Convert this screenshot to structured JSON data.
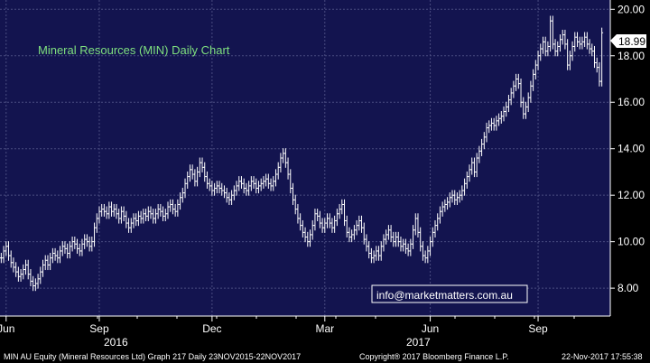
{
  "chart_data": {
    "type": "ohlc",
    "title": "Mineral Resources (MIN) Daily Chart",
    "ylim": [
      6.8,
      20.4
    ],
    "yticks": [
      8,
      10,
      12,
      14,
      16,
      18,
      20
    ],
    "ytick_labels": [
      "8.00",
      "10.00",
      "12.00",
      "14.00",
      "16.00",
      "18.00",
      "20.00"
    ],
    "x_month_labels": [
      "Jun",
      "Sep",
      "Dec",
      "Mar",
      "Jun",
      "Sep"
    ],
    "year_labels": [
      "2016",
      "2017"
    ],
    "grid": true,
    "last_price": 18.99,
    "last_price_label": "18.99",
    "watermark": "info@marketmatters.com.au",
    "series": [
      {
        "values": [
          9.3,
          9.6,
          9.8,
          9.4,
          9.1,
          8.9,
          8.7,
          8.5,
          8.6,
          8.8,
          9.0,
          8.6,
          8.3,
          8.1,
          8.2,
          8.4,
          8.7,
          9.0,
          9.2,
          9.0,
          9.3,
          9.5,
          9.4,
          9.3,
          9.6,
          9.8,
          9.7,
          9.5,
          9.8,
          10.0,
          9.9,
          9.7,
          9.6,
          9.9,
          10.1,
          10.0,
          9.8,
          10.0,
          10.6,
          11.0,
          11.3,
          11.4,
          11.3,
          11.2,
          11.5,
          11.3,
          11.4,
          11.2,
          11.0,
          11.3,
          11.1,
          10.8,
          10.6,
          10.8,
          11.0,
          10.9,
          11.1,
          11.0,
          11.2,
          11.1,
          11.3,
          11.2,
          11.0,
          11.2,
          11.4,
          11.3,
          11.1,
          11.2,
          11.5,
          11.6,
          11.4,
          11.3,
          11.6,
          11.9,
          12.1,
          12.5,
          12.8,
          13.1,
          12.9,
          12.6,
          13.0,
          13.4,
          13.2,
          12.8,
          12.5,
          12.4,
          12.2,
          12.3,
          12.4,
          12.3,
          12.2,
          12.1,
          11.9,
          11.8,
          12.0,
          12.2,
          12.4,
          12.6,
          12.5,
          12.3,
          12.2,
          12.4,
          12.6,
          12.5,
          12.3,
          12.4,
          12.5,
          12.6,
          12.7,
          12.5,
          12.4,
          12.6,
          12.9,
          13.2,
          13.6,
          13.8,
          13.4,
          12.9,
          12.3,
          11.8,
          11.4,
          11.0,
          10.7,
          10.4,
          10.2,
          10.0,
          10.3,
          10.7,
          11.2,
          11.1,
          10.8,
          10.6,
          10.8,
          11.0,
          10.8,
          10.6,
          10.9,
          11.2,
          11.4,
          11.6,
          10.9,
          10.4,
          10.2,
          10.3,
          10.5,
          10.7,
          10.9,
          10.6,
          10.1,
          9.8,
          9.5,
          9.3,
          9.4,
          9.6,
          9.4,
          9.8,
          10.1,
          10.3,
          10.5,
          10.2,
          10.0,
          10.2,
          10.0,
          9.8,
          9.9,
          9.7,
          9.6,
          9.9,
          10.5,
          11.0,
          10.4,
          9.8,
          9.4,
          9.3,
          9.6,
          10.0,
          10.4,
          10.7,
          11.0,
          11.3,
          11.5,
          11.6,
          11.7,
          11.9,
          12.0,
          11.8,
          11.9,
          12.0,
          12.2,
          12.5,
          12.8,
          13.1,
          13.4,
          13.0,
          13.6,
          13.9,
          14.2,
          14.5,
          14.9,
          15.0,
          15.1,
          15.0,
          15.2,
          15.3,
          15.4,
          15.6,
          15.8,
          16.1,
          16.4,
          16.7,
          17.0,
          16.8,
          16.0,
          15.5,
          15.8,
          16.2,
          16.7,
          17.2,
          17.6,
          18.0,
          18.3,
          18.6,
          18.2,
          18.4,
          19.5,
          18.5,
          18.2,
          18.4,
          18.7,
          18.9,
          18.5,
          17.6,
          18.0,
          18.4,
          18.8,
          18.6,
          18.5,
          18.6,
          18.8,
          18.5,
          18.3,
          18.2,
          17.7,
          17.5,
          16.9,
          18.99
        ]
      }
    ]
  },
  "footer": {
    "left_text": "MIN AU Equity (Mineral Resources Ltd) Graph 217  Daily 23NOV2015-22NOV2017",
    "center_text": "Copyright® 2017 Bloomberg Finance L.P.",
    "right_text": "22-Nov-2017 17:55:38"
  },
  "colors": {
    "plot_bg": "#13144f",
    "grid": "#4a4c80",
    "bars": "#ffffff",
    "title": "#7fe07f",
    "axis_bg": "#000000"
  }
}
